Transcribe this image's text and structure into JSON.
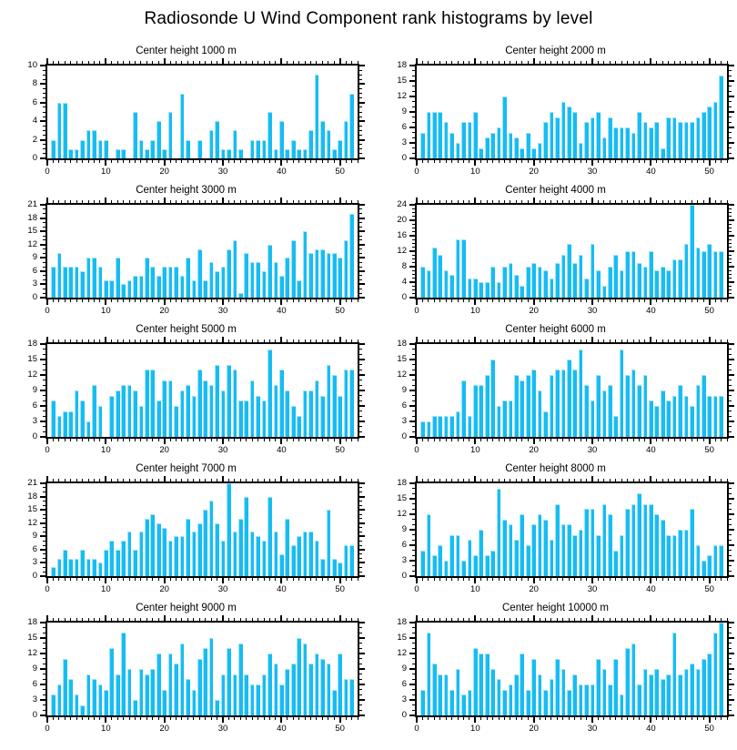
{
  "page_title": "Radiosonde U Wind Component rank histograms by level",
  "style": {
    "bar_fill": "#17bcf2",
    "bar_edge_highlight": "#9ae3fa",
    "axis_color": "#000000",
    "text_color": "#000000",
    "background": "#ffffff"
  },
  "chart_data": [
    {
      "type": "bar",
      "title": "Center height 1000 m",
      "center_height_m": 1000,
      "xlabel": "",
      "ylabel": "",
      "xlim": [
        0,
        53
      ],
      "ylim": [
        0,
        10
      ],
      "ytick_step": 2,
      "xticks": [
        0,
        10,
        20,
        30,
        40,
        50
      ],
      "grid": false,
      "n_bins": 52,
      "values": [
        2,
        6,
        6,
        1,
        1,
        2,
        3,
        3,
        2,
        2,
        0,
        1,
        1,
        0,
        5,
        2,
        1,
        2,
        4,
        1,
        5,
        0,
        7,
        2,
        0,
        2,
        0,
        3,
        4,
        1,
        1,
        3,
        1,
        0,
        2,
        2,
        2,
        5,
        1,
        4,
        1,
        2,
        1,
        1,
        3,
        9,
        4,
        3,
        1,
        2,
        4,
        7
      ]
    },
    {
      "type": "bar",
      "title": "Center height 2000 m",
      "center_height_m": 2000,
      "xlabel": "",
      "ylabel": "",
      "xlim": [
        0,
        53
      ],
      "ylim": [
        0,
        18
      ],
      "ytick_step": 3,
      "xticks": [
        0,
        10,
        20,
        30,
        40,
        50
      ],
      "grid": false,
      "n_bins": 52,
      "values": [
        5,
        9,
        9,
        9,
        7,
        5,
        3,
        7,
        7,
        9,
        2,
        4,
        5,
        6,
        12,
        5,
        4,
        2,
        5,
        2,
        3,
        7,
        9,
        8,
        11,
        10,
        9,
        3,
        7,
        8,
        9,
        4,
        8,
        6,
        6,
        6,
        5,
        9,
        7,
        6,
        7,
        2,
        8,
        8,
        7,
        7,
        7,
        8,
        9,
        10,
        11,
        16
      ]
    },
    {
      "type": "bar",
      "title": "Center height 3000 m",
      "center_height_m": 3000,
      "xlabel": "",
      "ylabel": "",
      "xlim": [
        0,
        53
      ],
      "ylim": [
        0,
        21
      ],
      "ytick_step": 3,
      "xticks": [
        0,
        10,
        20,
        30,
        40,
        50
      ],
      "grid": false,
      "n_bins": 52,
      "values": [
        7,
        10,
        7,
        7,
        7,
        6,
        9,
        9,
        7,
        4,
        4,
        9,
        3,
        4,
        5,
        5,
        9,
        7,
        5,
        7,
        7,
        7,
        5,
        9,
        4,
        11,
        4,
        8,
        6,
        7,
        11,
        13,
        1,
        10,
        8,
        8,
        6,
        12,
        8,
        5,
        9,
        13,
        4,
        15,
        10,
        11,
        11,
        10,
        10,
        9,
        13,
        19
      ]
    },
    {
      "type": "bar",
      "title": "Center height 4000 m",
      "center_height_m": 4000,
      "xlabel": "",
      "ylabel": "",
      "xlim": [
        0,
        53
      ],
      "ylim": [
        0,
        24
      ],
      "ytick_step": 4,
      "xticks": [
        0,
        10,
        20,
        30,
        40,
        50
      ],
      "grid": false,
      "n_bins": 52,
      "values": [
        8,
        7,
        13,
        11,
        7,
        6,
        15,
        15,
        5,
        5,
        4,
        4,
        8,
        4,
        8,
        9,
        6,
        3,
        8,
        9,
        8,
        7,
        5,
        9,
        11,
        14,
        9,
        11,
        5,
        14,
        7,
        3,
        8,
        11,
        7,
        12,
        12,
        9,
        8,
        12,
        7,
        8,
        7,
        10,
        10,
        14,
        24,
        13,
        12,
        14,
        12,
        12
      ]
    },
    {
      "type": "bar",
      "title": "Center height 5000 m",
      "center_height_m": 5000,
      "xlabel": "",
      "ylabel": "",
      "xlim": [
        0,
        53
      ],
      "ylim": [
        0,
        18
      ],
      "ytick_step": 3,
      "xticks": [
        0,
        10,
        20,
        30,
        40,
        50
      ],
      "grid": false,
      "n_bins": 52,
      "values": [
        7,
        4,
        5,
        5,
        9,
        7,
        3,
        10,
        6,
        0,
        8,
        9,
        10,
        10,
        9,
        6,
        13,
        13,
        7,
        11,
        11,
        6,
        9,
        10,
        8,
        13,
        11,
        10,
        14,
        9,
        14,
        13,
        7,
        7,
        11,
        8,
        7,
        17,
        10,
        13,
        9,
        6,
        4,
        9,
        9,
        11,
        8,
        14,
        12,
        8,
        13,
        13
      ]
    },
    {
      "type": "bar",
      "title": "Center height 6000 m",
      "center_height_m": 6000,
      "xlabel": "",
      "ylabel": "",
      "xlim": [
        0,
        53
      ],
      "ylim": [
        0,
        18
      ],
      "ytick_step": 3,
      "xticks": [
        0,
        10,
        20,
        30,
        40,
        50
      ],
      "grid": false,
      "n_bins": 52,
      "values": [
        3,
        3,
        4,
        4,
        4,
        4,
        5,
        11,
        4,
        10,
        10,
        12,
        15,
        6,
        7,
        7,
        12,
        11,
        12,
        13,
        9,
        5,
        12,
        13,
        13,
        15,
        13,
        17,
        10,
        7,
        12,
        9,
        10,
        4,
        17,
        12,
        13,
        10,
        12,
        7,
        6,
        9,
        7,
        8,
        10,
        8,
        6,
        10,
        12,
        8,
        8,
        8
      ]
    },
    {
      "type": "bar",
      "title": "Center height 7000 m",
      "center_height_m": 7000,
      "xlabel": "",
      "ylabel": "",
      "xlim": [
        0,
        53
      ],
      "ylim": [
        0,
        21
      ],
      "ytick_step": 3,
      "xticks": [
        0,
        10,
        20,
        30,
        40,
        50
      ],
      "grid": false,
      "n_bins": 52,
      "values": [
        2,
        4,
        6,
        4,
        4,
        6,
        4,
        4,
        3,
        6,
        8,
        6,
        8,
        10,
        6,
        10,
        13,
        14,
        12,
        11,
        8,
        9,
        9,
        13,
        10,
        12,
        15,
        17,
        12,
        8,
        21,
        10,
        13,
        18,
        10,
        9,
        8,
        18,
        10,
        5,
        13,
        7,
        9,
        10,
        10,
        8,
        4,
        15,
        4,
        3,
        7,
        7
      ]
    },
    {
      "type": "bar",
      "title": "Center height 8000 m",
      "center_height_m": 8000,
      "xlabel": "",
      "ylabel": "",
      "xlim": [
        0,
        53
      ],
      "ylim": [
        0,
        18
      ],
      "ytick_step": 3,
      "xticks": [
        0,
        10,
        20,
        30,
        40,
        50
      ],
      "grid": false,
      "n_bins": 52,
      "values": [
        5,
        12,
        4,
        6,
        3,
        8,
        8,
        3,
        7,
        4,
        9,
        4,
        5,
        17,
        11,
        10,
        7,
        12,
        6,
        10,
        12,
        11,
        7,
        14,
        10,
        10,
        8,
        9,
        13,
        13,
        8,
        14,
        12,
        5,
        8,
        13,
        14,
        16,
        14,
        14,
        12,
        11,
        8,
        8,
        9,
        9,
        13,
        6,
        3,
        4,
        6,
        6
      ]
    },
    {
      "type": "bar",
      "title": "Center height 9000 m",
      "center_height_m": 9000,
      "xlabel": "",
      "ylabel": "",
      "xlim": [
        0,
        53
      ],
      "ylim": [
        0,
        18
      ],
      "ytick_step": 3,
      "xticks": [
        0,
        10,
        20,
        30,
        40,
        50
      ],
      "grid": false,
      "n_bins": 52,
      "values": [
        4,
        6,
        11,
        7,
        4,
        2,
        8,
        7,
        6,
        5,
        13,
        8,
        16,
        9,
        3,
        9,
        8,
        9,
        12,
        5,
        12,
        10,
        14,
        7,
        5,
        11,
        13,
        15,
        3,
        8,
        13,
        8,
        14,
        8,
        6,
        6,
        8,
        12,
        10,
        6,
        9,
        10,
        15,
        14,
        10,
        12,
        11,
        10,
        5,
        12,
        7,
        7
      ]
    },
    {
      "type": "bar",
      "title": "Center height 10000 m",
      "center_height_m": 10000,
      "xlabel": "",
      "ylabel": "",
      "xlim": [
        0,
        53
      ],
      "ylim": [
        0,
        18
      ],
      "ytick_step": 3,
      "xticks": [
        0,
        10,
        20,
        30,
        40,
        50
      ],
      "grid": false,
      "n_bins": 52,
      "values": [
        5,
        16,
        10,
        8,
        8,
        5,
        9,
        4,
        5,
        13,
        12,
        12,
        9,
        7,
        5,
        6,
        8,
        12,
        5,
        11,
        8,
        5,
        7,
        11,
        9,
        5,
        8,
        6,
        6,
        6,
        11,
        9,
        6,
        11,
        4,
        13,
        14,
        6,
        9,
        8,
        9,
        7,
        8,
        16,
        8,
        9,
        10,
        9,
        11,
        12,
        16,
        18
      ]
    }
  ]
}
